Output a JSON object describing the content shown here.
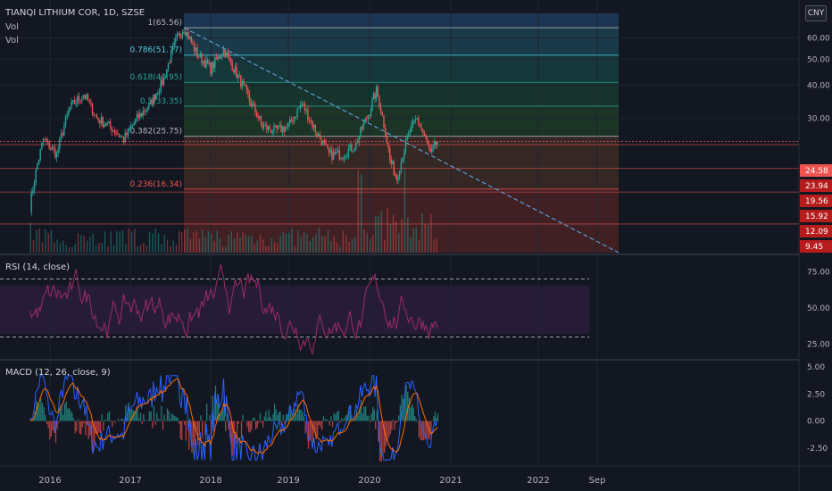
{
  "symbol_title": "TIANQI LITHIUM COR, 1D, SZSE",
  "vol_label_1": "Vol",
  "vol_label_2": "Vol",
  "currency": "CNY",
  "rsi_label": "RSI (14, close)",
  "macd_label": "MACD (12, 26, close, 9)",
  "colors": {
    "background": "#131722",
    "up": "#26a69a",
    "down": "#ef5350",
    "price_line": "#ef5350",
    "trendline": "#5b9bd5",
    "rsi_line": "#9c2a6a",
    "rsi_band": "#2a1d3a",
    "macd_line": "#2962ff",
    "signal_line": "#ff6d00"
  },
  "chart_data": [
    {
      "type": "line",
      "pane": "price",
      "x_ticks": [
        "2016",
        "2017",
        "2018",
        "2019",
        "2020",
        "2021",
        "2022",
        "Sep"
      ],
      "y_ticks": [
        60,
        50,
        40,
        30
      ],
      "ylim": [
        9.45,
        65.56
      ],
      "current_price": 24.58,
      "price_labels": [
        "24.58",
        "23.94",
        "19.56",
        "15.92",
        "12.09",
        "9.45"
      ],
      "fib_levels": [
        {
          "label": "1(65.56)",
          "value": 65.56
        },
        {
          "label": "0.786(51.77)",
          "value": 51.77
        },
        {
          "label": "0.618(40.95)",
          "value": 40.95
        },
        {
          "label": "0.5(33.35)",
          "value": 33.35
        },
        {
          "label": "0.382(25.75)",
          "value": 25.75
        },
        {
          "label": "0.236(16.34)",
          "value": 16.34
        }
      ],
      "series_close": [
        {
          "x": "2015-10",
          "y": 14
        },
        {
          "x": "2015-12",
          "y": 25
        },
        {
          "x": "2016-02",
          "y": 22
        },
        {
          "x": "2016-04",
          "y": 33
        },
        {
          "x": "2016-06",
          "y": 37
        },
        {
          "x": "2016-08",
          "y": 30
        },
        {
          "x": "2016-10",
          "y": 28
        },
        {
          "x": "2016-12",
          "y": 25
        },
        {
          "x": "2017-02",
          "y": 30
        },
        {
          "x": "2017-04",
          "y": 34
        },
        {
          "x": "2017-06",
          "y": 42
        },
        {
          "x": "2017-08",
          "y": 60
        },
        {
          "x": "2017-09",
          "y": 65.5
        },
        {
          "x": "2017-11",
          "y": 52
        },
        {
          "x": "2018-01",
          "y": 46
        },
        {
          "x": "2018-03",
          "y": 54
        },
        {
          "x": "2018-05",
          "y": 44
        },
        {
          "x": "2018-07",
          "y": 35
        },
        {
          "x": "2018-09",
          "y": 28
        },
        {
          "x": "2018-11",
          "y": 27
        },
        {
          "x": "2019-01",
          "y": 28
        },
        {
          "x": "2019-03",
          "y": 34
        },
        {
          "x": "2019-05",
          "y": 27
        },
        {
          "x": "2019-07",
          "y": 22
        },
        {
          "x": "2019-09",
          "y": 22
        },
        {
          "x": "2019-11",
          "y": 24
        },
        {
          "x": "2020-01",
          "y": 32
        },
        {
          "x": "2020-02",
          "y": 38
        },
        {
          "x": "2020-04",
          "y": 21
        },
        {
          "x": "2020-05",
          "y": 18
        },
        {
          "x": "2020-07",
          "y": 27
        },
        {
          "x": "2020-08",
          "y": 30
        },
        {
          "x": "2020-10",
          "y": 22
        },
        {
          "x": "2020-11",
          "y": 24.58
        }
      ]
    },
    {
      "type": "line",
      "pane": "rsi",
      "y_ticks": [
        75,
        50,
        25
      ],
      "ylim": [
        15,
        85
      ],
      "bands": [
        70,
        30
      ]
    },
    {
      "type": "line",
      "pane": "macd",
      "y_ticks": [
        "5.00",
        "2.50",
        "0.00",
        "-2.50"
      ],
      "ylim": [
        -4,
        5.5
      ]
    }
  ]
}
